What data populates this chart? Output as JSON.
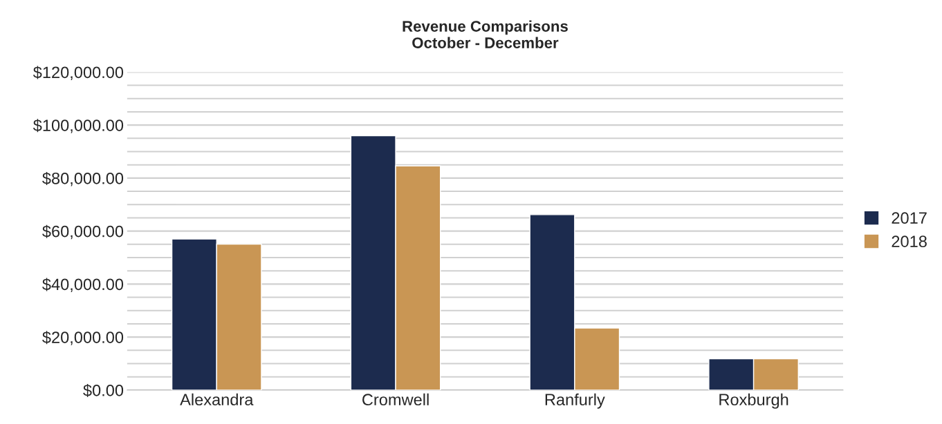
{
  "chart_data": {
    "type": "bar",
    "title": "Revenue Comparisons\nOctober - December",
    "categories": [
      "Alexandra",
      "Cromwell",
      "Ranfurly",
      "Roxburgh"
    ],
    "series": [
      {
        "name": "2017",
        "color": "#1c2b4e",
        "values": [
          57000,
          96000,
          66200,
          11800
        ]
      },
      {
        "name": "2018",
        "color": "#c99654",
        "values": [
          55100,
          84600,
          23400,
          11800
        ]
      }
    ],
    "ylim": [
      0,
      120000
    ],
    "yticks": [
      {
        "value": 0,
        "label": "$0.00"
      },
      {
        "value": 5000,
        "label": null
      },
      {
        "value": 10000,
        "label": null
      },
      {
        "value": 15000,
        "label": null
      },
      {
        "value": 20000,
        "label": "$20,000.00"
      },
      {
        "value": 25000,
        "label": null
      },
      {
        "value": 30000,
        "label": null
      },
      {
        "value": 35000,
        "label": null
      },
      {
        "value": 40000,
        "label": "$40,000.00"
      },
      {
        "value": 45000,
        "label": null
      },
      {
        "value": 50000,
        "label": null
      },
      {
        "value": 55000,
        "label": null
      },
      {
        "value": 60000,
        "label": "$60,000.00"
      },
      {
        "value": 65000,
        "label": null
      },
      {
        "value": 70000,
        "label": null
      },
      {
        "value": 75000,
        "label": null
      },
      {
        "value": 80000,
        "label": "$80,000.00"
      },
      {
        "value": 85000,
        "label": null
      },
      {
        "value": 90000,
        "label": null
      },
      {
        "value": 95000,
        "label": null
      },
      {
        "value": 100000,
        "label": "$100,000.00"
      },
      {
        "value": 105000,
        "label": null
      },
      {
        "value": 110000,
        "label": null
      },
      {
        "value": 115000,
        "label": null
      },
      {
        "value": 120000,
        "label": "$120,000.00"
      }
    ],
    "grid": "y",
    "legend": "right"
  }
}
